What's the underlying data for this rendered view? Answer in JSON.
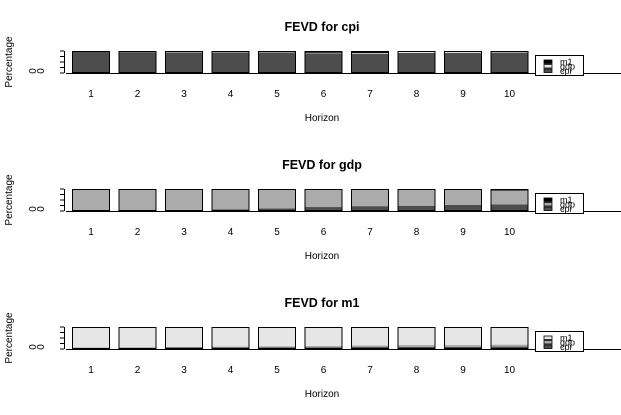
{
  "chart_data": [
    {
      "type": "bar",
      "stacked": true,
      "title": "FEVD for cpi",
      "xlabel": "Horizon",
      "ylabel": "Percentage",
      "categories": [
        "1",
        "2",
        "3",
        "4",
        "5",
        "6",
        "7",
        "8",
        "9",
        "10"
      ],
      "yticks": [
        "0",
        "0"
      ],
      "ylim": [
        0,
        1
      ],
      "legend_position": "right",
      "series": [
        {
          "name": "cpi",
          "color": "#4d4d4d",
          "values": [
            1.0,
            0.95,
            0.94,
            0.93,
            0.92,
            0.9,
            0.88,
            0.91,
            0.92,
            0.93
          ]
        },
        {
          "name": "gdp",
          "color": "#e6e6e6",
          "values": [
            0.0,
            0.02,
            0.02,
            0.02,
            0.02,
            0.02,
            0.03,
            0.05,
            0.04,
            0.04
          ]
        },
        {
          "name": "m1",
          "color": "#000000",
          "values": [
            0.0,
            0.03,
            0.04,
            0.05,
            0.06,
            0.08,
            0.09,
            0.04,
            0.04,
            0.03
          ]
        }
      ]
    },
    {
      "type": "bar",
      "stacked": true,
      "title": "FEVD for gdp",
      "xlabel": "Horizon",
      "ylabel": "Percentage",
      "categories": [
        "1",
        "2",
        "3",
        "4",
        "5",
        "6",
        "7",
        "8",
        "9",
        "10"
      ],
      "yticks": [
        "0",
        "0"
      ],
      "ylim": [
        0,
        1
      ],
      "legend_position": "right",
      "series": [
        {
          "name": "cpi",
          "color": "#4d4d4d",
          "values": [
            0.0,
            0.02,
            0.05,
            0.08,
            0.12,
            0.18,
            0.22,
            0.24,
            0.28,
            0.3
          ]
        },
        {
          "name": "gdp",
          "color": "#ababab",
          "values": [
            1.0,
            0.96,
            0.93,
            0.9,
            0.86,
            0.8,
            0.75,
            0.73,
            0.68,
            0.63
          ]
        },
        {
          "name": "m1",
          "color": "#000000",
          "values": [
            0.0,
            0.02,
            0.02,
            0.02,
            0.02,
            0.02,
            0.03,
            0.03,
            0.04,
            0.07
          ]
        }
      ]
    },
    {
      "type": "bar",
      "stacked": true,
      "title": "FEVD for m1",
      "xlabel": "Horizon",
      "ylabel": "Percentage",
      "categories": [
        "1",
        "2",
        "3",
        "4",
        "5",
        "6",
        "7",
        "8",
        "9",
        "10"
      ],
      "yticks": [
        "0",
        "0"
      ],
      "ylim": [
        0,
        1
      ],
      "legend_position": "right",
      "series": [
        {
          "name": "cpi",
          "color": "#4d4d4d",
          "values": [
            0.06,
            0.06,
            0.07,
            0.07,
            0.08,
            0.08,
            0.09,
            0.1,
            0.1,
            0.11
          ]
        },
        {
          "name": "gdp",
          "color": "#ababab",
          "values": [
            0.0,
            0.02,
            0.03,
            0.04,
            0.05,
            0.06,
            0.07,
            0.08,
            0.08,
            0.09
          ]
        },
        {
          "name": "m1",
          "color": "#e6e6e6",
          "values": [
            0.94,
            0.92,
            0.9,
            0.89,
            0.87,
            0.86,
            0.84,
            0.82,
            0.82,
            0.8
          ]
        }
      ]
    }
  ]
}
